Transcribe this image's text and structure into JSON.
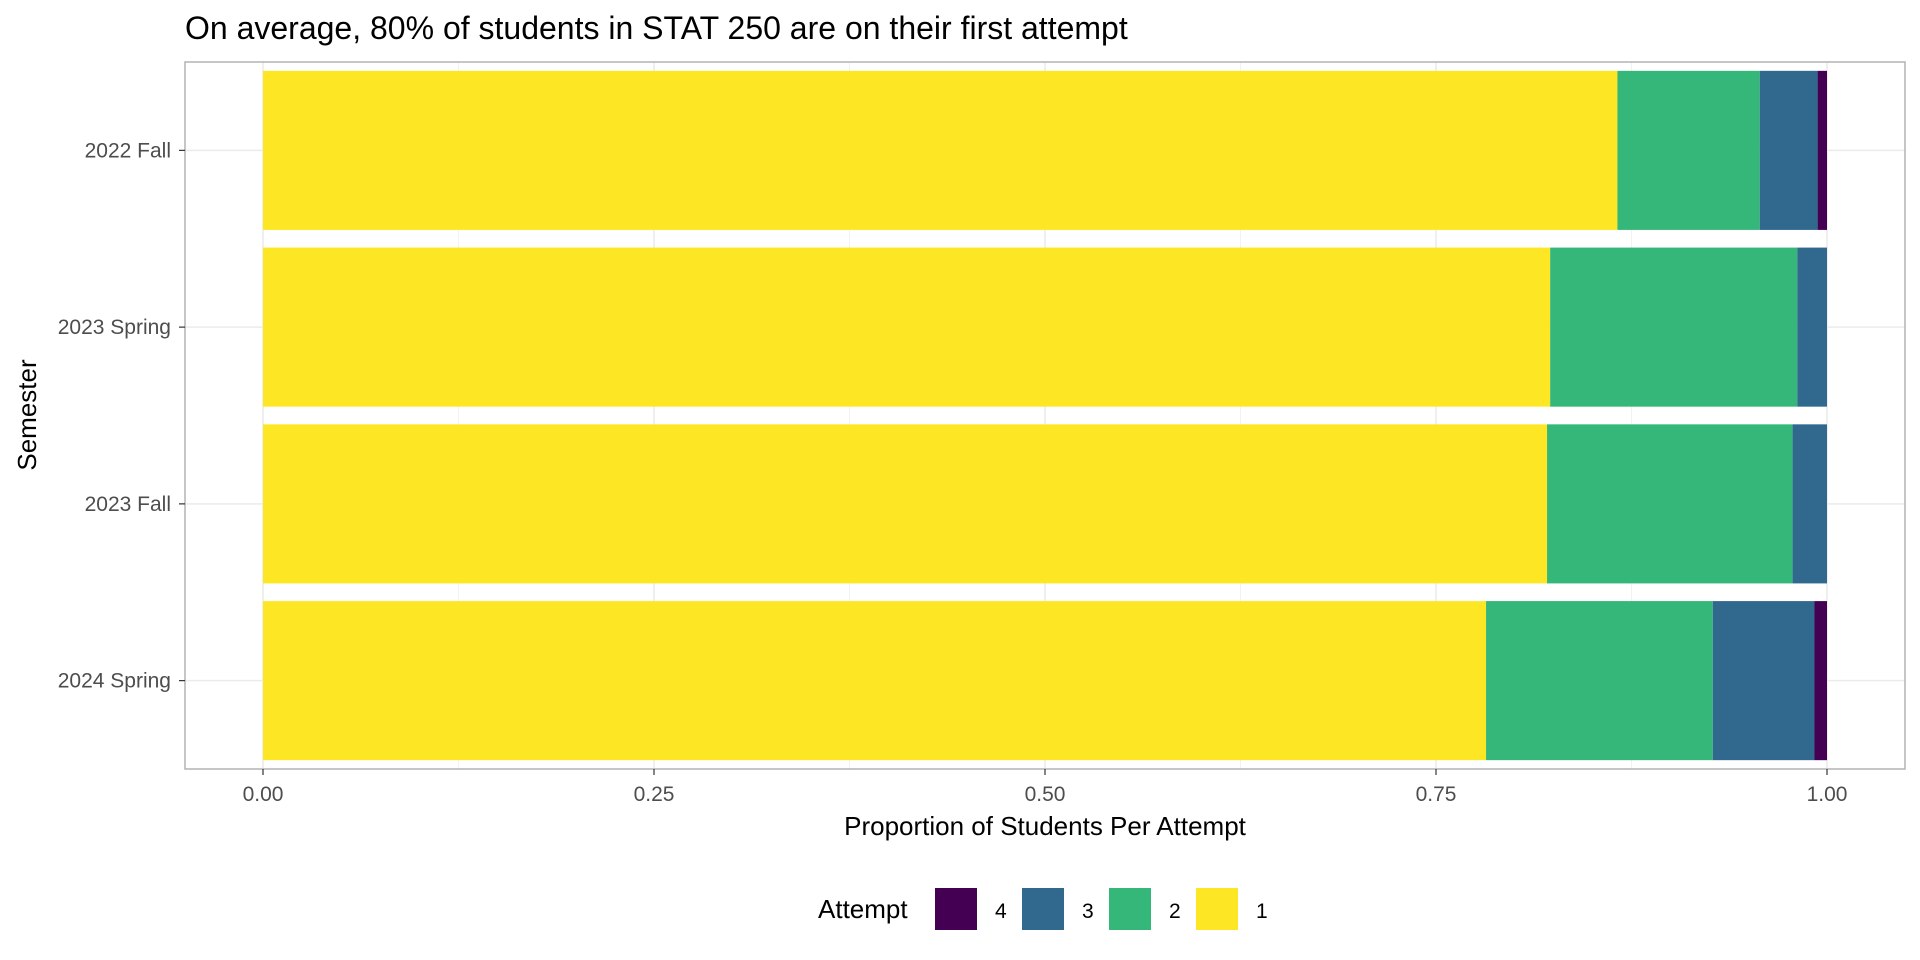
{
  "chart_data": {
    "type": "bar",
    "orientation": "horizontal",
    "stacked": true,
    "title": "On average, 80% of students in STAT 250 are on their first attempt",
    "xlabel": "Proportion of Students Per Attempt",
    "ylabel": "Semester",
    "xlim": [
      0,
      1
    ],
    "x_ticks": [
      "0.00",
      "0.25",
      "0.50",
      "0.75",
      "1.00"
    ],
    "x_tick_values": [
      0,
      0.25,
      0.5,
      0.75,
      1.0
    ],
    "categories": [
      "2022 Fall",
      "2023 Spring",
      "2023 Fall",
      "2024 Spring"
    ],
    "series": [
      {
        "name": "1",
        "color": "#FDE725",
        "values": [
          0.866,
          0.823,
          0.821,
          0.782
        ]
      },
      {
        "name": "2",
        "color": "#35B779",
        "values": [
          0.091,
          0.158,
          0.157,
          0.145
        ]
      },
      {
        "name": "3",
        "color": "#31688E",
        "values": [
          0.037,
          0.019,
          0.022,
          0.065
        ]
      },
      {
        "name": "4",
        "color": "#440154",
        "values": [
          0.006,
          0.0,
          0.0,
          0.008
        ]
      }
    ],
    "grid": true,
    "legend": {
      "title": "Attempt",
      "position": "bottom",
      "order": [
        "4",
        "3",
        "2",
        "1"
      ]
    }
  }
}
